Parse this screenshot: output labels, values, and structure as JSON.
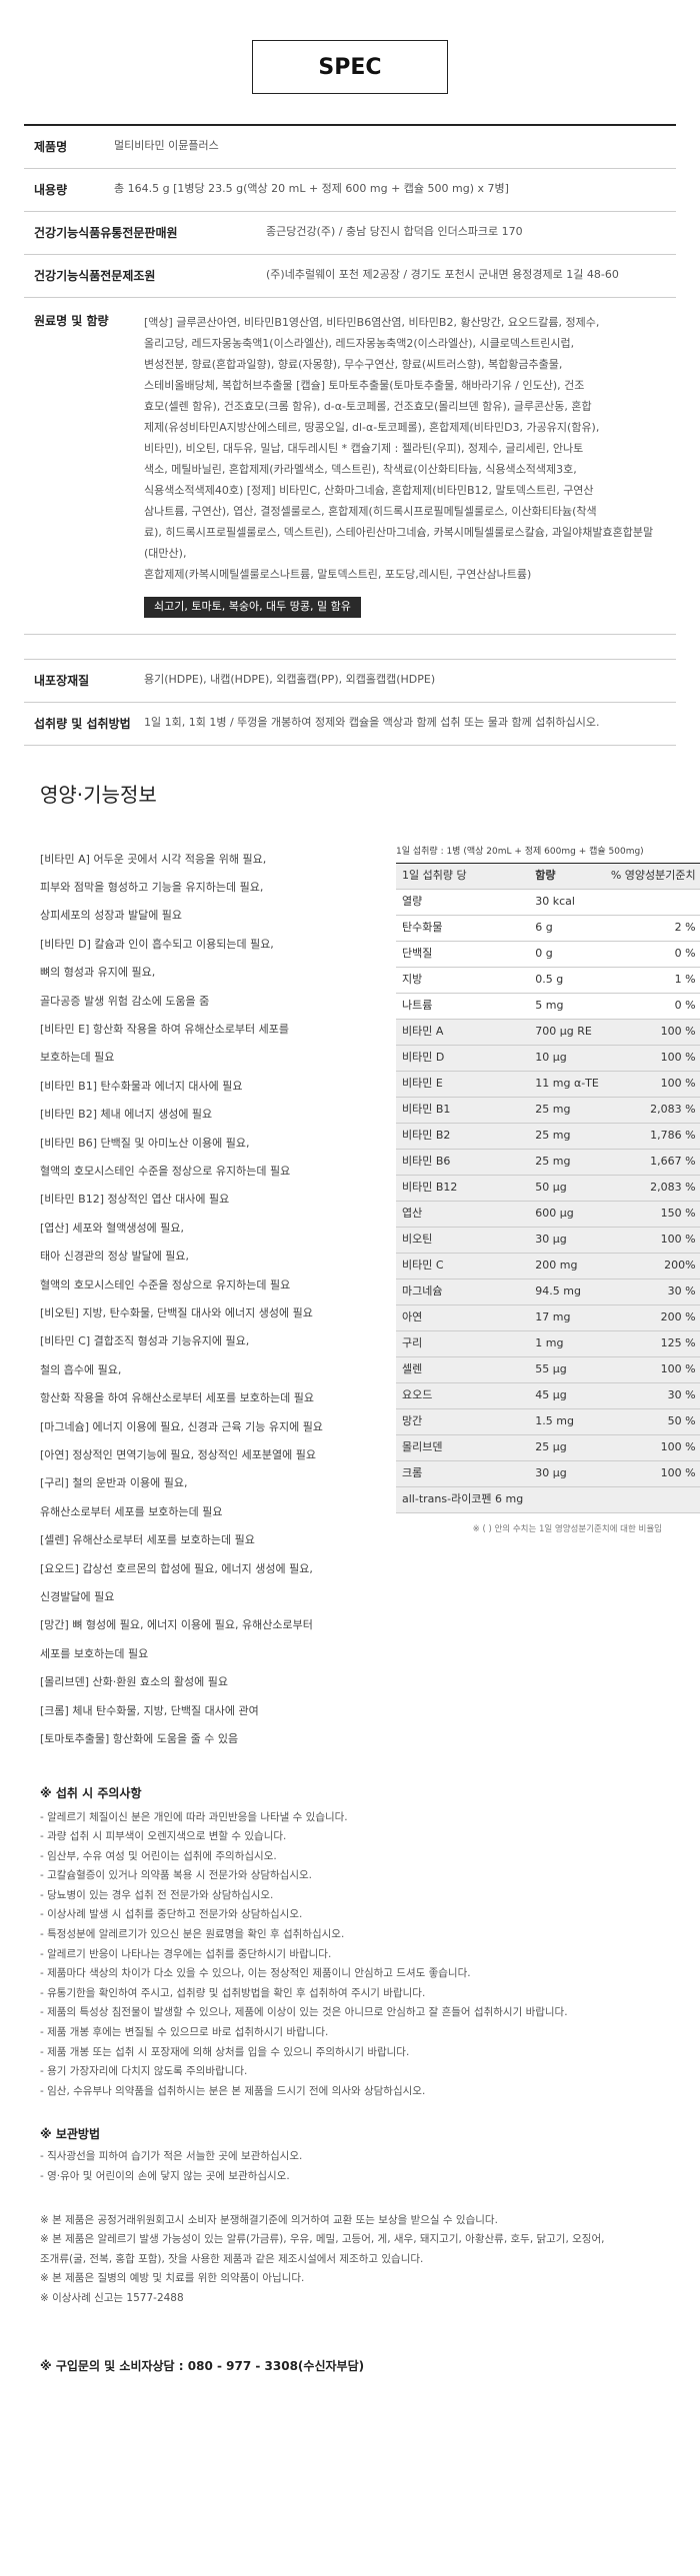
{
  "spec_title": "SPEC",
  "spec": {
    "product_name": {
      "label": "제품명",
      "value": "멀티비타민 이뮨플러스"
    },
    "content": {
      "label": "내용량",
      "value": "총 164.5 g [1병당 23.5 g(액상 20 mL + 정제 600 mg + 캡슐 500 mg) x 7병]"
    },
    "seller": {
      "label": "건강기능식품유통전문판매원",
      "value": "종근당건강(주) / 충남 당진시 합덕읍 인더스파크로 170"
    },
    "maker": {
      "label": "건강기능식품전문제조원",
      "value": "(주)네추럴웨이 포천 제2공장 / 경기도 포천시 군내면 용정경제로 1길 48-60"
    },
    "ingredients_label": "원료명 및 함량",
    "ingredients_lines": [
      "[액상] 글루콘산아연, 비타민B1영산염, 비타민B6염산염, 비타민B2, 황산망간, 요오드칼륨, 정제수,",
      "올리고당, 레드자몽농축액1(이스라엘산), 레드자몽농축액2(이스라엘산), 시클로덱스트린시럽,",
      "변성전분, 향료(혼합과일향), 향료(자몽향), 무수구연산, 향료(씨트러스향), 복합황금추출물,",
      "스테비올배당체, 복합허브추출물 [캡슐] 토마토추출물(토마토추출물, 해바라기유 / 인도산), 건조",
      "효모(셀렌 함유), 건조효모(크롬 함유), d-α-토코페롤, 건조효모(몰리브덴 함유), 글루콘산동, 혼합",
      "제제(유성비타민A지방산에스테르, 땅콩오일, dl-α-토코페롤), 혼합제제(비타민D3, 가공유지(함유),",
      "비타민), 비오틴, 대두유, 밀납, 대두레시틴 * 캡슐기제 : 젤라틴(우피), 정제수, 글리세린, 안나토",
      "색소, 메틸바닐린, 혼합제제(카라멜색소, 덱스트린), 착색료(이산화티타늄, 식용색소적색제3호,",
      "식용색소적색제40호) [정제] 비타민C, 산화마그네슘, 혼합제제(비타민B12, 말토덱스트린, 구연산",
      "삼나트륨, 구연산), 엽산, 결정셀룰로스, 혼합제제(히드록시프로필메틸셀룰로스, 이산화티타늄(착색",
      "료), 히드록시프로필셀룰로스, 덱스트린), 스테아린산마그네슘, 카복시메틸셀룰로스칼슘, 과일야채발효혼합분말(대만산),",
      "혼합제제(카복시메틸셀룰로스나트륨, 말토덱스트린, 포도당,레시틴, 구연산삼나트륨)"
    ],
    "allergen": "쇠고기, 토마토, 복숭아, 대두 땅콩, 밀 함유",
    "packaging": {
      "label": "내포장재질",
      "value": "용기(HDPE), 내캡(HDPE), 외캡홀캡(PP), 외캡홀캡캡(HDPE)"
    },
    "intake": {
      "label": "섭취량 및 섭취방법",
      "value": "1일 1회, 1회 1병 / 뚜껑을 개봉하여 정제와 캡슐을 액상과 함께 섭취 또는 물과 함께 섭취하십시오."
    }
  },
  "nutrition_title": "영양·기능정보",
  "functions": [
    "[비타민 A] 어두운 곳에서 시각 적응을 위해 필요,",
    "피부와 점막을 형성하고 기능을 유지하는데 필요,",
    "상피세포의 성장과 발달에 필요",
    "[비타민 D] 칼슘과 인이 흡수되고 이용되는데 필요,",
    "뼈의 형성과 유지에 필요,",
    "골다공증 발생 위험 감소에 도움을 줌",
    "[비타민 E] 항산화 작용을 하여 유해산소로부터 세포를",
    "보호하는데 필요",
    "[비타민 B1] 탄수화물과 에너지 대사에 필요",
    "[비타민 B2] 체내 에너지 생성에 필요",
    "[비타민 B6] 단백질 및 아미노산 이용에 필요,",
    "혈액의 호모시스테인 수준을 정상으로 유지하는데 필요",
    "[비타민 B12] 정상적인 엽산 대사에 필요",
    "[엽산] 세포와 혈액생성에 필요,",
    "태아 신경관의 정상 발달에 필요,",
    "혈액의 호모시스테인 수준을 정상으로 유지하는데 필요",
    "[비오틴] 지방, 탄수화물, 단백질 대사와 에너지 생성에 필요",
    "[비타민 C] 결합조직 형성과 기능유지에 필요,",
    "철의 흡수에 필요,",
    "항산화 작용을 하여 유해산소로부터 세포를 보호하는데 필요",
    "[마그네슘] 에너지 이용에 필요, 신경과 근육 기능 유지에 필요",
    "[아연] 정상적인 면역기능에 필요, 정상적인 세포분열에 필요",
    "[구리] 철의 운반과 이용에 필요,",
    "유해산소로부터 세포를 보호하는데 필요",
    "[셀렌] 유해산소로부터 세포를 보호하는데 필요",
    "[요오드] 갑상선 호르몬의 합성에 필요, 에너지 생성에 필요,",
    "신경발달에 필요",
    "[망간] 뼈 형성에 필요, 에너지 이용에 필요, 유해산소로부터",
    "세포를 보호하는데 필요",
    "[몰리브덴] 산화·환원 효소의 활성에 필요",
    "[크롬] 체내 탄수화물, 지방, 단백질 대사에 관여",
    "[토마토추출물] 항산화에 도움을 줄 수 있음"
  ],
  "table_caption": "1일 섭취량 : 1병 (액상 20mL + 정제 600mg + 캡슐 500mg)",
  "table_header": [
    "1일 섭취량 당",
    "함량",
    "% 영양성분기준치"
  ],
  "table_rows": [
    [
      "열량",
      "30 kcal",
      ""
    ],
    [
      "탄수화물",
      "6 g",
      "2 %"
    ],
    [
      "단백질",
      "0 g",
      "0 %"
    ],
    [
      "지방",
      "0.5 g",
      "1 %"
    ],
    [
      "나트륨",
      "5 mg",
      "0 %"
    ],
    [
      "비타민 A",
      "700 μg RE",
      "100 %"
    ],
    [
      "비타민 D",
      "10 μg",
      "100 %"
    ],
    [
      "비타민 E",
      "11 mg α-TE",
      "100 %"
    ],
    [
      "비타민 B1",
      "25 mg",
      "2,083 %"
    ],
    [
      "비타민 B2",
      "25 mg",
      "1,786 %"
    ],
    [
      "비타민 B6",
      "25 mg",
      "1,667 %"
    ],
    [
      "비타민 B12",
      "50 μg",
      "2,083 %"
    ],
    [
      "엽산",
      "600 μg",
      "150 %"
    ],
    [
      "비오틴",
      "30 μg",
      "100 %"
    ],
    [
      "비타민 C",
      "200 mg",
      "200%"
    ],
    [
      "마그네슘",
      "94.5 mg",
      "30 %"
    ],
    [
      "아연",
      "17 mg",
      "200 %"
    ],
    [
      "구리",
      "1 mg",
      "125 %"
    ],
    [
      "셀렌",
      "55 μg",
      "100 %"
    ],
    [
      "요오드",
      "45 μg",
      "30 %"
    ],
    [
      "망간",
      "1.5 mg",
      "50 %"
    ],
    [
      "몰리브덴",
      "25 μg",
      "100 %"
    ],
    [
      "크롬",
      "30 μg",
      "100 %"
    ],
    [
      "all-trans-라이코펜 6 mg",
      "",
      ""
    ]
  ],
  "table_footnote": "※ ( ) 안의 수치는 1일 영양성분기준치에 대한 비율임",
  "caution_title": "※ 섭취 시 주의사항",
  "cautions": [
    "- 알레르기 체질이신 분은 개인에 따라 과민반응을 나타낼 수 있습니다.",
    "- 과량 섭취 시 피부색이 오렌지색으로 변할 수 있습니다.",
    "- 임산부, 수유 여성 및 어린이는 섭취에 주의하십시오.",
    "- 고칼슘혈증이 있거나 의약품 복용 시 전문가와 상담하십시오.",
    "- 당뇨병이 있는 경우 섭취 전 전문가와 상담하십시오.",
    "- 이상사례 발생 시 섭취를 중단하고 전문가와 상담하십시오.",
    "- 특정성분에 알레르기가 있으신 분은 원료명을 확인 후 섭취하십시오.",
    "- 알레르기 반응이 나타나는 경우에는 섭취를 중단하시기 바랍니다.",
    "- 제품마다 색상의 차이가 다소 있을 수 있으나, 이는 정상적인 제품이니 안심하고 드셔도 좋습니다.",
    "- 유통기한을 확인하여 주시고, 섭취량 및 섭취방법을 확인 후 섭취하여 주시기 바랍니다.",
    "- 제품의 특성상 침전물이 발생할 수 있으나, 제품에 이상이 있는 것은 아니므로 안심하고 잘 흔들어 섭취하시기 바랍니다.",
    "- 제품 개봉 후에는 변질될 수 있으므로 바로 섭취하시기 바랍니다.",
    "- 제품 개봉 또는 섭취 시 포장재에 의해 상처를 입을 수 있으니 주의하시기 바랍니다.",
    "- 용기 가장자리에 다치지 않도록 주의바랍니다.",
    "- 임산, 수유부나 의약품을 섭취하시는 분은 본 제품을 드시기 전에 의사와 상담하십시오."
  ],
  "storage_title": "※ 보관방법",
  "storage": [
    "- 직사광선을 피하여 습기가 적은 서늘한 곳에 보관하십시오.",
    "- 영·유아 및 어린이의 손에 닿지 않는 곳에 보관하십시오."
  ],
  "notes": [
    "※ 본 제품은 공정거래위원회고시 소비자 분쟁해결기준에 의거하여 교환 또는 보상을 받으실 수 있습니다.",
    "※ 본 제품은 알레르기 발생 가능성이 있는 알류(가금류), 우유, 메밀, 고등어, 게, 새우, 돼지고기, 아황산류, 호두, 닭고기, 오징어,",
    "   조개류(굴, 전복, 홍합 포함), 잣을 사용한 제품과 같은 제조시설에서 제조하고 있습니다.",
    "※ 본 제품은 질병의 예방 및 치료를 위한 의약품이 아닙니다.",
    "※ 이상사례 신고는 1577-2488"
  ],
  "contact": "※ 구입문의 및 소비자상담 : 080 - 977 - 3308(수신자부담)"
}
